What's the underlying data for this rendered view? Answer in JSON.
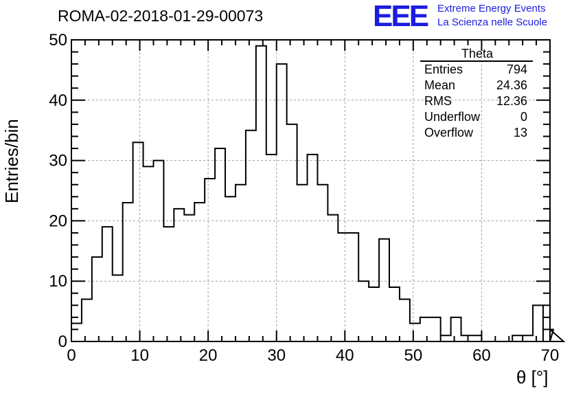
{
  "header": {
    "run_title": "ROMA-02-2018-01-29-00073",
    "logo": "EEE",
    "logo_line1": "Extreme Energy Events",
    "logo_line2": "La Scienza nelle Scuole"
  },
  "stats_box": {
    "title": "Theta",
    "rows": [
      {
        "label": "Entries",
        "value": "794"
      },
      {
        "label": "Mean",
        "value": "24.36"
      },
      {
        "label": "RMS",
        "value": "12.36"
      },
      {
        "label": "Underflow",
        "value": "0"
      },
      {
        "label": "Overflow",
        "value": "13"
      }
    ]
  },
  "chart_data": {
    "type": "bar",
    "histogram": true,
    "xlabel": "θ [°]",
    "ylabel": "Entries/bin",
    "xlim": [
      0,
      70
    ],
    "ylim": [
      0,
      50
    ],
    "bin_width": 1.5,
    "bin_edges_start": 0,
    "values": [
      3,
      7,
      14,
      19,
      11,
      23,
      33,
      29,
      30,
      19,
      22,
      21,
      23,
      27,
      32,
      24,
      26,
      35,
      49,
      31,
      46,
      36,
      26,
      31,
      26,
      21,
      18,
      18,
      10,
      9,
      17,
      9,
      7,
      3,
      4,
      4,
      1,
      4,
      1,
      1,
      0,
      0,
      0,
      1,
      1,
      6,
      0,
      2,
      0
    ],
    "x_ticks": [
      0,
      10,
      20,
      30,
      40,
      50,
      60,
      70
    ],
    "y_ticks": [
      0,
      10,
      20,
      30,
      40,
      50
    ],
    "grid": true,
    "line_color": "#000000",
    "grid_color": "#a0a0a0"
  }
}
